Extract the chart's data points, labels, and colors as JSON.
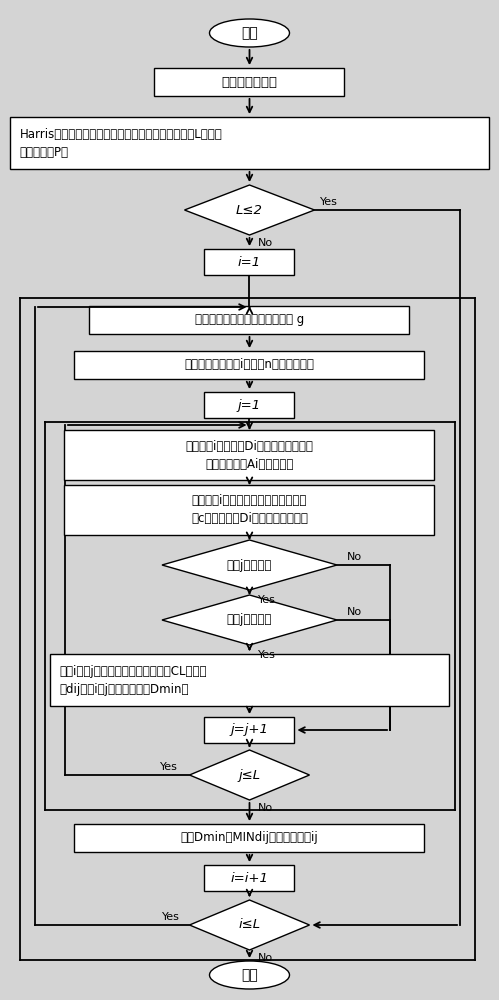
{
  "bg_color": "#d4d4d4",
  "box_color": "#ffffff",
  "box_edge": "#000000",
  "arrow_color": "#000000",
  "text_color": "#000000",
  "nodes": {
    "start": {
      "label": "开始"
    },
    "pre": {
      "label": "矿石图像预处理"
    },
    "harris": {
      "label": "Harris和圆形模版检测法获取目标凹点，并将凹点数L、坐标\n值存入数组P中"
    },
    "decL": {
      "label": "L≤2"
    },
    "i1": {
      "label": "i=1"
    },
    "centroid": {
      "label": "求圆形模板内边缘像素集的重心 g"
    },
    "vector": {
      "label": "求重心到目标凹点i的向量n，定为主向量"
    },
    "j1": {
      "label": "j=1"
    },
    "sector": {
      "label": "确定以点i为圆心、Di为半径，左右方向\n均偏离主向量Ai的搜索扇形"
    },
    "rectbox": {
      "label": "确定以点i为宽度中点、扇形最长宽度\n的c倍为宽长，Di为长度的限定矩形"
    },
    "decfan": {
      "label": "凹点j在扇形内"
    },
    "decrect": {
      "label": "凹点j在矩形内"
    },
    "store": {
      "label": "将点i、点j作为候选匹配对存入数组CL中，求\n出dij，将i、j的值存入数组Dmin中"
    },
    "jj1": {
      "label": "j=j+1"
    },
    "decjL": {
      "label": "j≤L"
    },
    "findmin": {
      "label": "找出Dmin中MINdij，确定分离线ij"
    },
    "ii1": {
      "label": "i=i+1"
    },
    "deciL": {
      "label": "i≤L"
    },
    "end": {
      "label": "结束"
    }
  }
}
